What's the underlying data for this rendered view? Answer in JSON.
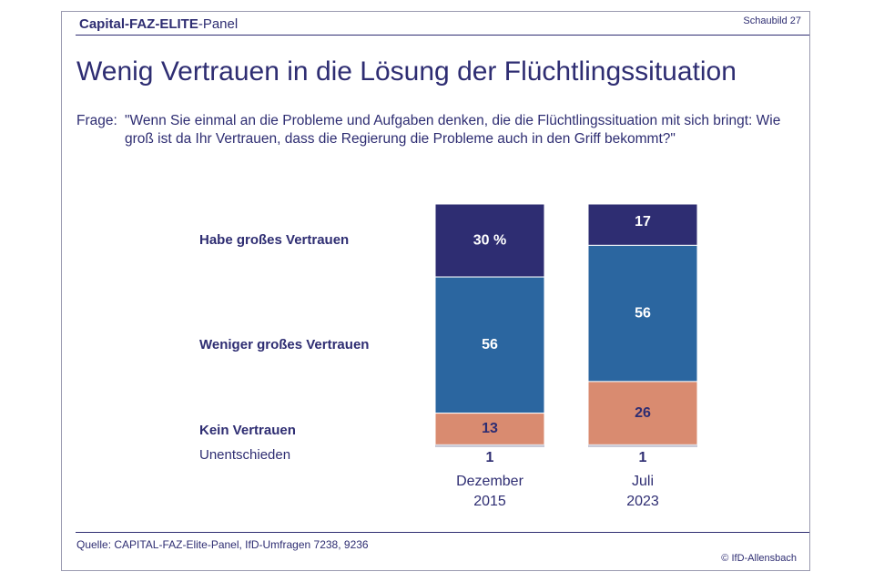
{
  "header": {
    "brand_bold": "Capital-FAZ-ELITE",
    "brand_rest": "-Panel",
    "figure": "Schaubild 27"
  },
  "chart_data": {
    "type": "bar",
    "stacked": true,
    "title": "Wenig Vertrauen in die Lösung der Flüchtlingssituation",
    "question_label": "Frage:",
    "question": "\"Wenn Sie einmal an die Probleme und Aufgaben denken, die die Flüchtlingssituation mit sich bringt: Wie groß ist da Ihr Vertrauen, dass die Regierung die Probleme auch in den Griff bekommt?\"",
    "categories": [
      "Dezember 2015",
      "Juli 2023"
    ],
    "series": [
      {
        "name": "Habe großes Vertrauen",
        "color": "#2e2d72",
        "values": [
          30,
          17
        ],
        "value_labels": [
          "30 %",
          "17"
        ]
      },
      {
        "name": "Weniger großes Vertrauen",
        "color": "#2b66a0",
        "values": [
          56,
          56
        ]
      },
      {
        "name": "Kein Vertrauen",
        "color": "#d98b70",
        "values": [
          13,
          26
        ]
      },
      {
        "name": "Unentschieden",
        "color": "#c9c9d6",
        "values": [
          1,
          1
        ]
      }
    ],
    "source": "Quelle: CAPITAL-FAZ-Elite-Panel, IfD-Umfragen 7238, 9236",
    "credit": "© IfD-Allensbach"
  }
}
